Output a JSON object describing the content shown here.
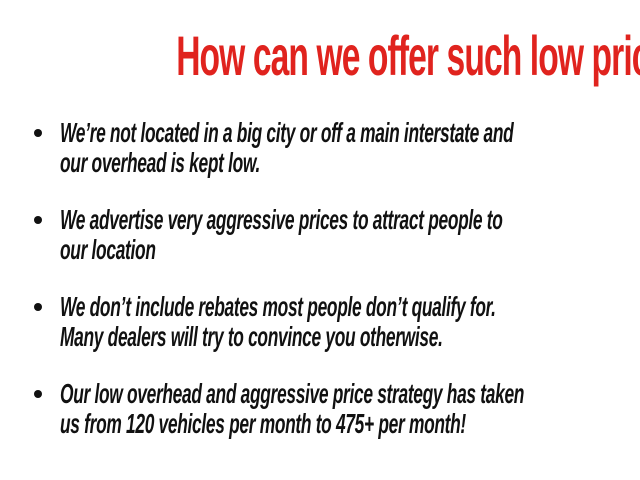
{
  "title": "How can we offer such low prices?",
  "colors": {
    "accent": "#e0231e",
    "text": "#111111",
    "background": "#ffffff"
  },
  "bullets": [
    {
      "lines": [
        "We’re not located in a big city or off a main interstate and",
        "our overhead is kept low."
      ]
    },
    {
      "lines": [
        "We advertise very aggressive prices to attract people to",
        "our location"
      ]
    },
    {
      "lines": [
        "We don’t include rebates most people don’t qualify for.",
        "Many dealers will try to convince you otherwise."
      ]
    },
    {
      "lines": [
        "Our low overhead and aggressive price strategy has taken",
        "us from 120 vehicles per month to 475+ per month!"
      ]
    }
  ]
}
